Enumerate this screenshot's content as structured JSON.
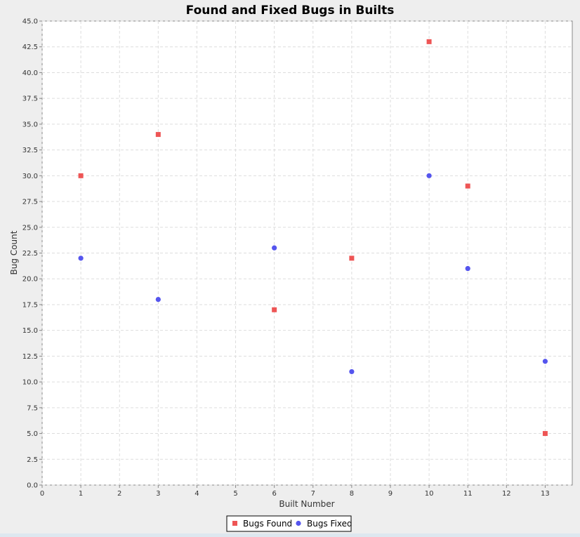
{
  "chart_data": {
    "type": "scatter",
    "title": "Found and Fixed Bugs in Builts",
    "xlabel": "Built Number",
    "ylabel": "Bug Count",
    "xlim": [
      0,
      13.7
    ],
    "ylim": [
      0,
      45
    ],
    "xticks": [
      0,
      1,
      2,
      3,
      4,
      5,
      6,
      7,
      8,
      9,
      10,
      11,
      12,
      13
    ],
    "xtick_labels": [
      "0",
      "1",
      "2",
      "3",
      "4",
      "5",
      "6",
      "7",
      "8",
      "9",
      "10",
      "11",
      "12",
      "13"
    ],
    "yticks": [
      0,
      2.5,
      5,
      7.5,
      10,
      12.5,
      15,
      17.5,
      20,
      22.5,
      25,
      27.5,
      30,
      32.5,
      35,
      37.5,
      40,
      42.5,
      45
    ],
    "ytick_labels": [
      "0.0",
      "2.5",
      "5.0",
      "7.5",
      "10.0",
      "12.5",
      "15.0",
      "17.5",
      "20.0",
      "22.5",
      "25.0",
      "27.5",
      "30.0",
      "32.5",
      "35.0",
      "37.5",
      "40.0",
      "42.5",
      "45.0"
    ],
    "grid": true,
    "legend_position": "bottom-center",
    "series": [
      {
        "name": "Bugs Found",
        "marker": "square",
        "color": "#ee5555",
        "points": [
          {
            "x": 1,
            "y": 30
          },
          {
            "x": 3,
            "y": 34
          },
          {
            "x": 6,
            "y": 17
          },
          {
            "x": 8,
            "y": 22
          },
          {
            "x": 10,
            "y": 43
          },
          {
            "x": 11,
            "y": 29
          },
          {
            "x": 13,
            "y": 5
          }
        ]
      },
      {
        "name": "Bugs Fixed",
        "marker": "circle",
        "color": "#5555ee",
        "points": [
          {
            "x": 1,
            "y": 22
          },
          {
            "x": 3,
            "y": 18
          },
          {
            "x": 6,
            "y": 23
          },
          {
            "x": 8,
            "y": 11
          },
          {
            "x": 10,
            "y": 30
          },
          {
            "x": 11,
            "y": 21
          },
          {
            "x": 13,
            "y": 12
          }
        ]
      }
    ]
  }
}
